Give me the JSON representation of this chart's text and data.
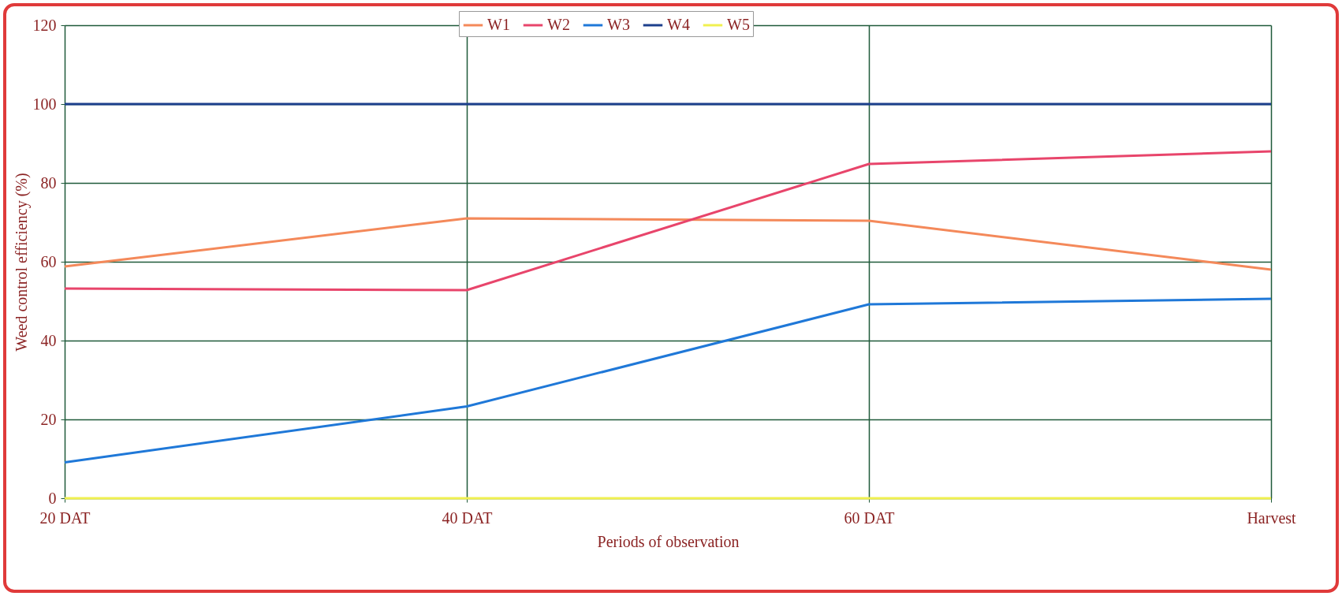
{
  "chart_data": {
    "type": "line",
    "xlabel": "Periods of observation",
    "ylabel": "Weed control efficiency (%)",
    "categories": [
      "20 DAT",
      "40 DAT",
      "60 DAT",
      "Harvest"
    ],
    "series": [
      {
        "name": "W1",
        "color": "#f4895a",
        "values": [
          58.8,
          71,
          70.4,
          58
        ]
      },
      {
        "name": "W2",
        "color": "#e8456b",
        "values": [
          53.2,
          52.8,
          84.8,
          88
        ]
      },
      {
        "name": "W3",
        "color": "#1f78d8",
        "values": [
          9.1,
          23.3,
          49.2,
          50.6
        ]
      },
      {
        "name": "W4",
        "color": "#1c3f8c",
        "values": [
          100,
          100,
          100,
          100
        ]
      },
      {
        "name": "W5",
        "color": "#f0f050",
        "values": [
          0,
          0,
          0,
          0
        ]
      }
    ],
    "ylim": [
      0,
      120
    ],
    "yticks": [
      0,
      20,
      40,
      60,
      80,
      100,
      120
    ],
    "grid": true,
    "legend": "top",
    "marker": "none",
    "line_style": "solid"
  }
}
